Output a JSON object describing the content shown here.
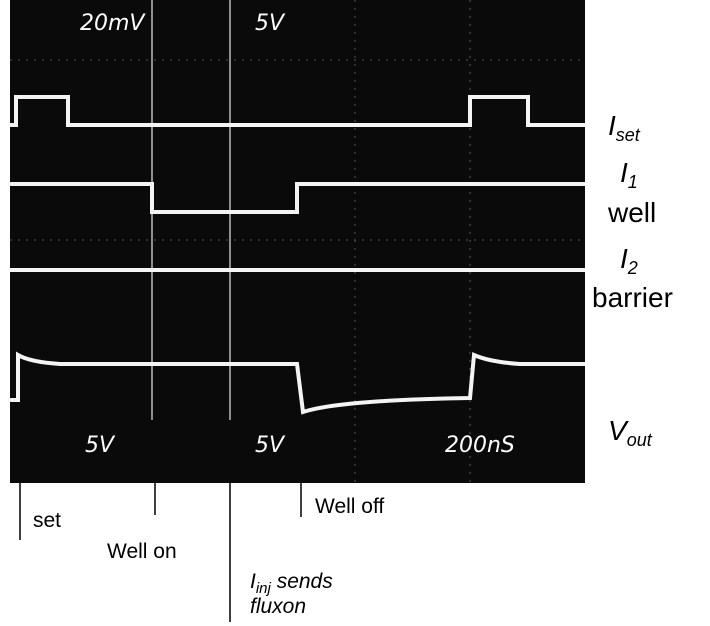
{
  "scope_labels": {
    "top_left": "20mV",
    "top_center": "5V",
    "bottom_left": "5V",
    "bottom_center": "5V",
    "bottom_right": "200nS"
  },
  "traces": [
    {
      "main": "I",
      "sub": "set"
    },
    {
      "main": "I",
      "sub": "1",
      "caption": "well"
    },
    {
      "main": "I",
      "sub": "2",
      "caption": "barrier"
    },
    {
      "main": "V",
      "sub": "out"
    }
  ],
  "events": [
    {
      "label": "set"
    },
    {
      "label": "Well on"
    },
    {
      "label_main": "I",
      "label_sub": "inj",
      "label_rest": " sends",
      "label_line2": "fluxon"
    },
    {
      "label": "Well off"
    }
  ]
}
